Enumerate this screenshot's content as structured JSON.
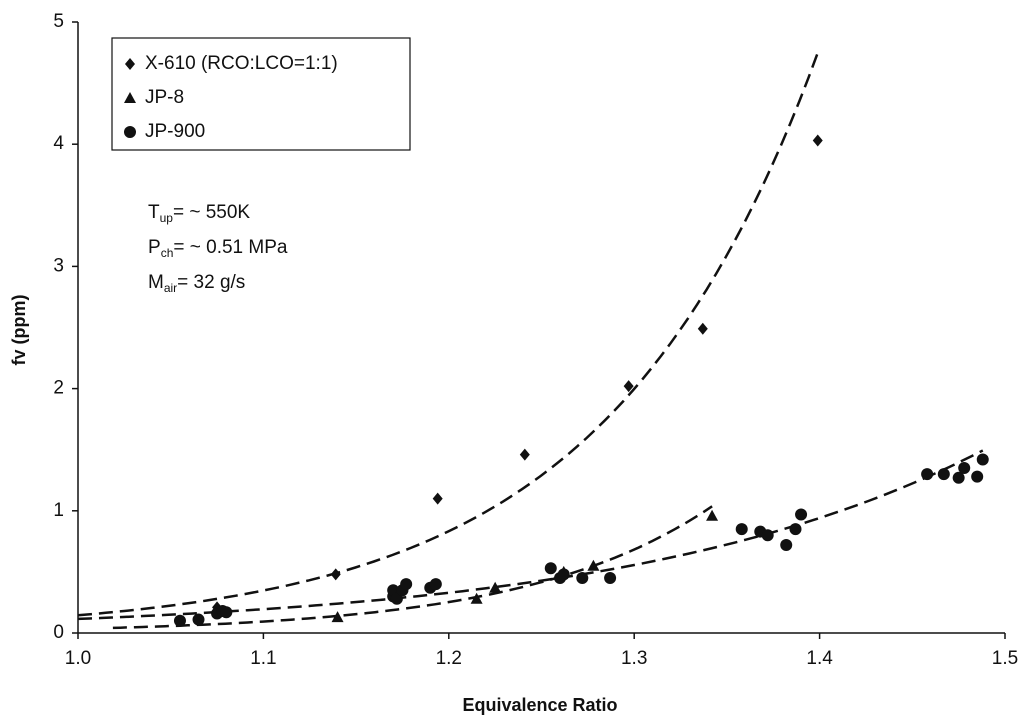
{
  "chart_data": {
    "type": "scatter",
    "x_label": "Equivalence Ratio",
    "y_label": "fv (ppm)",
    "xlim": [
      1.0,
      1.5
    ],
    "ylim": [
      0,
      5
    ],
    "xticks": [
      {
        "value": 1.0,
        "label": "1.0"
      },
      1.1,
      1.2,
      1.3,
      1.4,
      {
        "value": 1.5,
        "label": "1.5"
      }
    ],
    "yticks": [
      0,
      1,
      2,
      3,
      4,
      5
    ],
    "legend": "upper left",
    "trendline": "exponential",
    "annotations": [
      {
        "base": "T",
        "sub": "up",
        "text": "= ~ 550K"
      },
      {
        "base": "P",
        "sub": "ch",
        "text": "= ~ 0.51 MPa"
      },
      {
        "base": "M",
        "sub": "air",
        "text": "= 32 g/s"
      }
    ],
    "series": [
      {
        "name": "X-610 (RCO:LCO=1:1)",
        "color": "#111111",
        "marker": "diamond",
        "x": [
          1.075,
          1.139,
          1.194,
          1.241,
          1.297,
          1.337,
          1.399
        ],
        "values": [
          0.21,
          0.48,
          1.1,
          1.46,
          2.02,
          2.49,
          4.03
        ]
      },
      {
        "name": "JP-8",
        "color": "#111111",
        "marker": "triangle",
        "x": [
          1.14,
          1.215,
          1.225,
          1.262,
          1.278,
          1.342
        ],
        "values": [
          0.13,
          0.28,
          0.37,
          0.5,
          0.55,
          0.96
        ]
      },
      {
        "name": "JP-900",
        "color": "#111111",
        "marker": "circle",
        "x": [
          1.055,
          1.065,
          1.075,
          1.078,
          1.08,
          1.17,
          1.17,
          1.172,
          1.175,
          1.177,
          1.19,
          1.193,
          1.255,
          1.26,
          1.262,
          1.272,
          1.287,
          1.358,
          1.368,
          1.372,
          1.382,
          1.387,
          1.39,
          1.458,
          1.467,
          1.475,
          1.478,
          1.485,
          1.488
        ],
        "values": [
          0.1,
          0.11,
          0.16,
          0.18,
          0.17,
          0.3,
          0.35,
          0.28,
          0.35,
          0.4,
          0.37,
          0.4,
          0.53,
          0.45,
          0.48,
          0.45,
          0.45,
          0.85,
          0.83,
          0.8,
          0.72,
          0.85,
          0.97,
          1.3,
          1.3,
          1.27,
          1.35,
          1.28,
          1.42
        ]
      }
    ]
  }
}
